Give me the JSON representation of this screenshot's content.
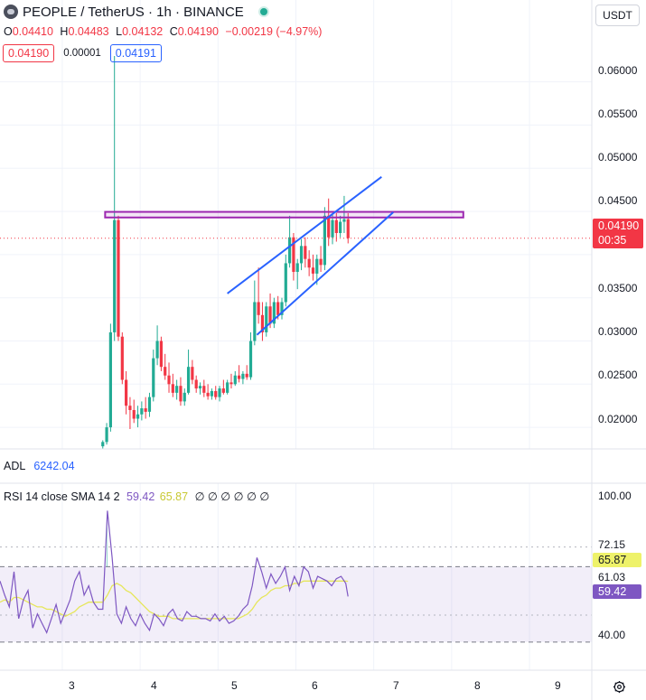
{
  "header": {
    "symbol": "PEOPLE / TetherUS · 1h · BINANCE",
    "currency": "USDT"
  },
  "ohlc": {
    "o_label": "O",
    "o": "0.04410",
    "h_label": "H",
    "h": "0.04483",
    "l_label": "L",
    "l": "0.04132",
    "c_label": "C",
    "c": "0.04190",
    "change": "−0.00219 (−4.97%)"
  },
  "quote": {
    "bid": "0.04190",
    "spread": "0.00001",
    "ask": "0.04191"
  },
  "price_axis": [
    "0.06000",
    "0.05500",
    "0.05000",
    "0.04500",
    "0.03500",
    "0.03000",
    "0.02500",
    "0.02000"
  ],
  "last_price": {
    "price": "0.04190",
    "countdown": "00:35"
  },
  "adl": {
    "label": "ADL",
    "value": "6242.04"
  },
  "rsi": {
    "label": "RSI 14 close SMA 14 2",
    "value": "59.42",
    "sma": "65.87",
    "blanks": "∅ ∅ ∅ ∅ ∅ ∅",
    "axis": [
      "100.00",
      "72.15",
      "61.03",
      "40.00"
    ]
  },
  "time_axis": [
    "3",
    "4",
    "5",
    "6",
    "7",
    "8",
    "9"
  ],
  "colors": {
    "up": "#22ab94",
    "down": "#f23645",
    "drawing_blue": "#2962ff",
    "drawing_purple": "#9c27b0",
    "rsi_line": "#7e57c2",
    "rsi_sma": "#e6e65a"
  },
  "chart_data": {
    "type": "candlestick",
    "xlim": [
      2.2,
      9.8
    ],
    "ylim": [
      0.0175,
      0.063
    ],
    "candles": [
      {
        "x": 3.52,
        "o": 0.0178,
        "h": 0.0185,
        "l": 0.0175,
        "c": 0.0183
      },
      {
        "x": 3.57,
        "o": 0.0183,
        "h": 0.0205,
        "l": 0.018,
        "c": 0.02
      },
      {
        "x": 3.62,
        "o": 0.02,
        "h": 0.032,
        "l": 0.0195,
        "c": 0.031
      },
      {
        "x": 3.67,
        "o": 0.031,
        "h": 0.063,
        "l": 0.03,
        "c": 0.044
      },
      {
        "x": 3.72,
        "o": 0.044,
        "h": 0.0445,
        "l": 0.03,
        "c": 0.0305
      },
      {
        "x": 3.77,
        "o": 0.0305,
        "h": 0.031,
        "l": 0.025,
        "c": 0.0255
      },
      {
        "x": 3.82,
        "o": 0.0255,
        "h": 0.0265,
        "l": 0.0215,
        "c": 0.0225
      },
      {
        "x": 3.87,
        "o": 0.0225,
        "h": 0.0235,
        "l": 0.0198,
        "c": 0.022
      },
      {
        "x": 3.92,
        "o": 0.022,
        "h": 0.0232,
        "l": 0.0205,
        "c": 0.021
      },
      {
        "x": 3.97,
        "o": 0.021,
        "h": 0.0225,
        "l": 0.02,
        "c": 0.0215
      },
      {
        "x": 4.02,
        "o": 0.0215,
        "h": 0.023,
        "l": 0.0208,
        "c": 0.0222
      },
      {
        "x": 4.07,
        "o": 0.0222,
        "h": 0.0235,
        "l": 0.021,
        "c": 0.0218
      },
      {
        "x": 4.12,
        "o": 0.0218,
        "h": 0.024,
        "l": 0.0212,
        "c": 0.0235
      },
      {
        "x": 4.17,
        "o": 0.0235,
        "h": 0.029,
        "l": 0.023,
        "c": 0.028
      },
      {
        "x": 4.22,
        "o": 0.028,
        "h": 0.0318,
        "l": 0.0272,
        "c": 0.03
      },
      {
        "x": 4.27,
        "o": 0.03,
        "h": 0.0305,
        "l": 0.0265,
        "c": 0.027
      },
      {
        "x": 4.32,
        "o": 0.027,
        "h": 0.0285,
        "l": 0.0255,
        "c": 0.026
      },
      {
        "x": 4.37,
        "o": 0.026,
        "h": 0.0275,
        "l": 0.024,
        "c": 0.025
      },
      {
        "x": 4.42,
        "o": 0.025,
        "h": 0.0262,
        "l": 0.0235,
        "c": 0.024
      },
      {
        "x": 4.47,
        "o": 0.024,
        "h": 0.0255,
        "l": 0.0232,
        "c": 0.0248
      },
      {
        "x": 4.52,
        "o": 0.0248,
        "h": 0.0258,
        "l": 0.0225,
        "c": 0.023
      },
      {
        "x": 4.57,
        "o": 0.023,
        "h": 0.0245,
        "l": 0.0225,
        "c": 0.024
      },
      {
        "x": 4.62,
        "o": 0.024,
        "h": 0.029,
        "l": 0.0238,
        "c": 0.027
      },
      {
        "x": 4.67,
        "o": 0.027,
        "h": 0.0278,
        "l": 0.025,
        "c": 0.0255
      },
      {
        "x": 4.72,
        "o": 0.0255,
        "h": 0.026,
        "l": 0.024,
        "c": 0.0245
      },
      {
        "x": 4.77,
        "o": 0.0245,
        "h": 0.0252,
        "l": 0.0238,
        "c": 0.0248
      },
      {
        "x": 4.82,
        "o": 0.0248,
        "h": 0.0255,
        "l": 0.0235,
        "c": 0.024
      },
      {
        "x": 4.87,
        "o": 0.024,
        "h": 0.025,
        "l": 0.0232,
        "c": 0.0236
      },
      {
        "x": 4.92,
        "o": 0.0236,
        "h": 0.0245,
        "l": 0.0232,
        "c": 0.0242
      },
      {
        "x": 4.97,
        "o": 0.0242,
        "h": 0.0248,
        "l": 0.0232,
        "c": 0.0235
      },
      {
        "x": 5.02,
        "o": 0.0235,
        "h": 0.0248,
        "l": 0.023,
        "c": 0.0245
      },
      {
        "x": 5.07,
        "o": 0.0245,
        "h": 0.0255,
        "l": 0.0238,
        "c": 0.024
      },
      {
        "x": 5.12,
        "o": 0.024,
        "h": 0.0255,
        "l": 0.0238,
        "c": 0.0252
      },
      {
        "x": 5.17,
        "o": 0.0252,
        "h": 0.0262,
        "l": 0.0245,
        "c": 0.025
      },
      {
        "x": 5.22,
        "o": 0.025,
        "h": 0.0265,
        "l": 0.0248,
        "c": 0.026
      },
      {
        "x": 5.27,
        "o": 0.026,
        "h": 0.0272,
        "l": 0.0252,
        "c": 0.0256
      },
      {
        "x": 5.32,
        "o": 0.0256,
        "h": 0.0265,
        "l": 0.025,
        "c": 0.0262
      },
      {
        "x": 5.37,
        "o": 0.0262,
        "h": 0.0272,
        "l": 0.0255,
        "c": 0.0258
      },
      {
        "x": 5.42,
        "o": 0.0258,
        "h": 0.031,
        "l": 0.0255,
        "c": 0.03
      },
      {
        "x": 5.47,
        "o": 0.03,
        "h": 0.037,
        "l": 0.0295,
        "c": 0.0345
      },
      {
        "x": 5.52,
        "o": 0.0345,
        "h": 0.0385,
        "l": 0.032,
        "c": 0.033
      },
      {
        "x": 5.57,
        "o": 0.033,
        "h": 0.0345,
        "l": 0.03,
        "c": 0.031
      },
      {
        "x": 5.62,
        "o": 0.031,
        "h": 0.0345,
        "l": 0.0305,
        "c": 0.034
      },
      {
        "x": 5.67,
        "o": 0.034,
        "h": 0.0355,
        "l": 0.0315,
        "c": 0.032
      },
      {
        "x": 5.72,
        "o": 0.032,
        "h": 0.035,
        "l": 0.0315,
        "c": 0.0345
      },
      {
        "x": 5.77,
        "o": 0.0345,
        "h": 0.0352,
        "l": 0.0325,
        "c": 0.033
      },
      {
        "x": 5.82,
        "o": 0.033,
        "h": 0.035,
        "l": 0.0325,
        "c": 0.0345
      },
      {
        "x": 5.87,
        "o": 0.0345,
        "h": 0.04,
        "l": 0.034,
        "c": 0.039
      },
      {
        "x": 5.92,
        "o": 0.039,
        "h": 0.0445,
        "l": 0.0385,
        "c": 0.042
      },
      {
        "x": 5.97,
        "o": 0.042,
        "h": 0.0425,
        "l": 0.037,
        "c": 0.038
      },
      {
        "x": 6.02,
        "o": 0.038,
        "h": 0.0395,
        "l": 0.036,
        "c": 0.039
      },
      {
        "x": 6.07,
        "o": 0.039,
        "h": 0.0418,
        "l": 0.0382,
        "c": 0.041
      },
      {
        "x": 6.12,
        "o": 0.041,
        "h": 0.042,
        "l": 0.0385,
        "c": 0.0395
      },
      {
        "x": 6.17,
        "o": 0.0395,
        "h": 0.0405,
        "l": 0.0375,
        "c": 0.0385
      },
      {
        "x": 6.22,
        "o": 0.0385,
        "h": 0.04,
        "l": 0.037,
        "c": 0.0378
      },
      {
        "x": 6.27,
        "o": 0.0378,
        "h": 0.04,
        "l": 0.0365,
        "c": 0.0395
      },
      {
        "x": 6.32,
        "o": 0.0395,
        "h": 0.041,
        "l": 0.038,
        "c": 0.0388
      },
      {
        "x": 6.37,
        "o": 0.0388,
        "h": 0.0455,
        "l": 0.0382,
        "c": 0.0445
      },
      {
        "x": 6.42,
        "o": 0.0445,
        "h": 0.0465,
        "l": 0.041,
        "c": 0.042
      },
      {
        "x": 6.47,
        "o": 0.042,
        "h": 0.0448,
        "l": 0.0412,
        "c": 0.044
      },
      {
        "x": 6.52,
        "o": 0.044,
        "h": 0.0448,
        "l": 0.0415,
        "c": 0.0425
      },
      {
        "x": 6.57,
        "o": 0.0425,
        "h": 0.0445,
        "l": 0.042,
        "c": 0.0438
      },
      {
        "x": 6.62,
        "o": 0.0438,
        "h": 0.0468,
        "l": 0.0425,
        "c": 0.0441
      },
      {
        "x": 6.67,
        "o": 0.0441,
        "h": 0.0448,
        "l": 0.0413,
        "c": 0.0419
      }
    ],
    "drawings": {
      "resistance_box": {
        "x": [
          3.55,
          8.15
        ],
        "y": [
          0.0443,
          0.04495
        ]
      },
      "channel_upper": {
        "x": [
          5.12,
          7.1
        ],
        "y": [
          0.0355,
          0.049
        ]
      },
      "channel_lower": {
        "x": [
          5.5,
          7.25
        ],
        "y": [
          0.0307,
          0.0449
        ]
      }
    },
    "rsi_ylim": [
      28,
      100
    ],
    "rsi_band": [
      40,
      72.15
    ],
    "rsi_dotted": [
      80.5,
      51.5
    ],
    "rsi_x": [
      2.2,
      2.26,
      2.32,
      2.38,
      2.44,
      2.5,
      2.56,
      2.62,
      2.68,
      2.74,
      2.8,
      2.86,
      2.92,
      2.98,
      3.04,
      3.1,
      3.16,
      3.22,
      3.28,
      3.34,
      3.4,
      3.46,
      3.52,
      3.58,
      3.64,
      3.7,
      3.76,
      3.82,
      3.88,
      3.94,
      4.0,
      4.06,
      4.12,
      4.18,
      4.24,
      4.3,
      4.36,
      4.42,
      4.48,
      4.54,
      4.6,
      4.66,
      4.72,
      4.78,
      4.84,
      4.9,
      4.96,
      5.02,
      5.08,
      5.14,
      5.2,
      5.26,
      5.32,
      5.38,
      5.44,
      5.5,
      5.56,
      5.62,
      5.68,
      5.74,
      5.8,
      5.86,
      5.92,
      5.98,
      6.04,
      6.1,
      6.16,
      6.22,
      6.28,
      6.34,
      6.4,
      6.46,
      6.52,
      6.58,
      6.64,
      6.67
    ],
    "rsi_values": [
      66,
      60,
      55,
      70,
      50,
      58,
      62,
      46,
      52,
      48,
      44,
      50,
      56,
      48,
      53,
      58,
      66,
      70,
      60,
      64,
      57,
      54,
      54,
      96,
      76,
      52,
      48,
      55,
      50,
      47,
      52,
      48,
      45,
      52,
      50,
      47,
      52,
      54,
      50,
      49,
      53,
      51,
      51,
      50,
      50,
      49,
      52,
      49,
      51,
      48,
      49,
      51,
      54,
      56,
      64,
      76,
      70,
      63,
      69,
      65,
      68,
      72,
      62,
      68,
      64,
      72,
      70,
      63,
      68,
      67,
      66,
      64,
      67,
      68,
      65,
      59.42
    ],
    "sma_values": [
      57,
      58,
      57,
      59,
      59,
      58,
      57,
      56,
      55,
      55,
      54,
      54,
      53,
      52,
      51,
      52,
      53,
      55,
      56,
      57,
      57,
      57,
      57,
      60,
      64,
      65,
      64,
      62,
      61,
      59,
      57,
      55,
      53,
      52,
      51,
      51,
      51,
      50,
      50,
      50,
      50,
      50,
      50,
      50,
      50,
      50,
      50,
      50,
      50,
      50,
      50,
      50,
      51,
      52,
      54,
      57,
      59,
      60,
      62,
      63,
      63,
      64,
      64,
      65,
      65,
      66,
      66,
      66,
      66,
      66,
      66,
      66,
      66,
      66,
      66,
      65.87
    ]
  }
}
